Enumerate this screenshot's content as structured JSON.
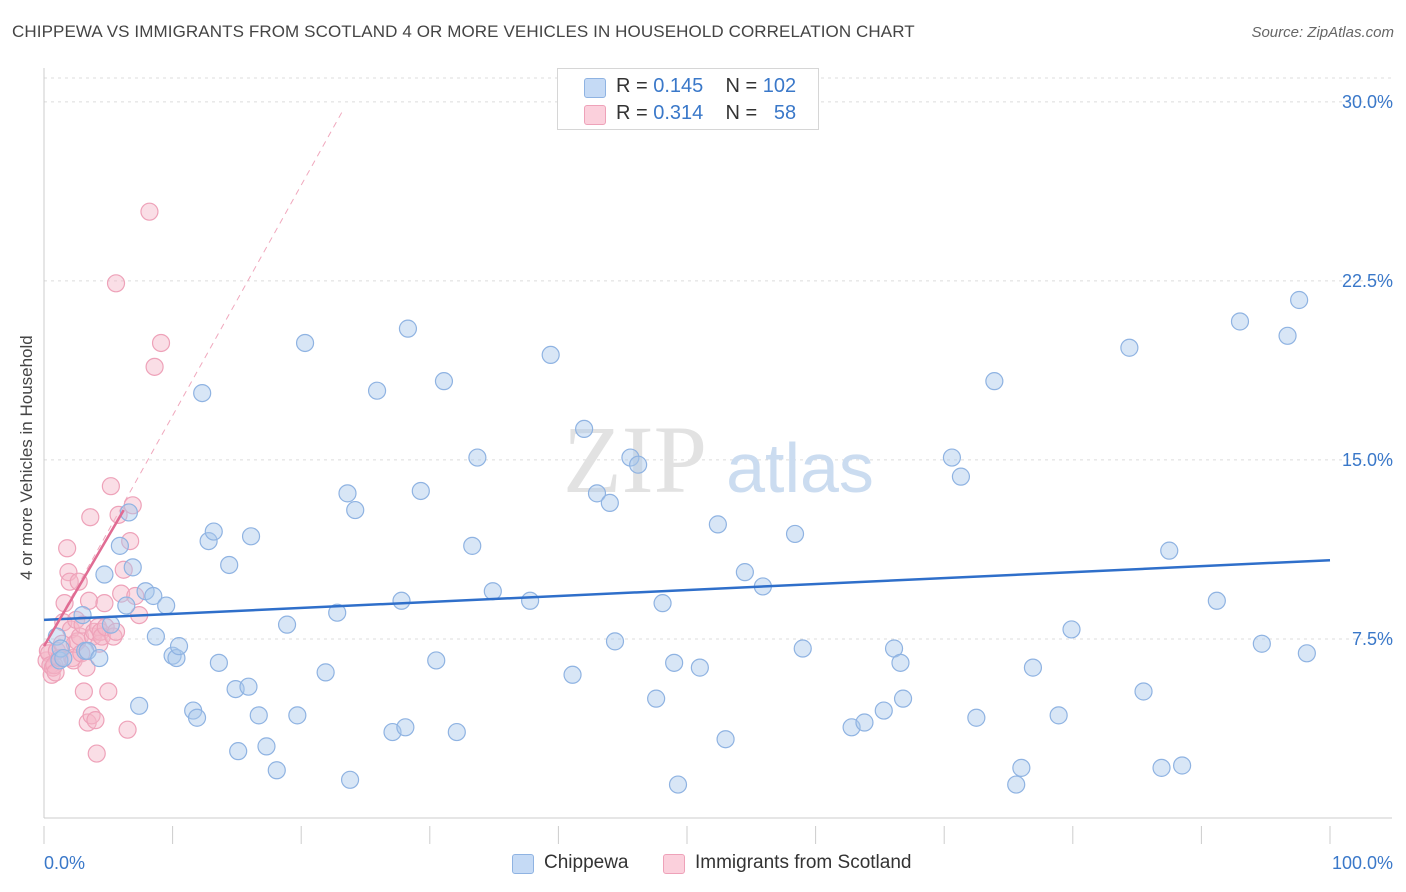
{
  "title": "CHIPPEWA VS IMMIGRANTS FROM SCOTLAND 4 OR MORE VEHICLES IN HOUSEHOLD CORRELATION CHART",
  "source": "Source: ZipAtlas.com",
  "watermark": {
    "zip": "ZIP",
    "atlas": "atlas"
  },
  "colors": {
    "chippewa": "#a9c7ec",
    "chippewa_line": "#2f6fca",
    "scotland": "#f5b6c8",
    "scotland_line": "#e06c93",
    "axis_value": "#3a78c9"
  },
  "legend": {
    "rows": [
      {
        "r_label": "R =",
        "r_value": "0.145",
        "n_label": "N =",
        "n_value": "102"
      },
      {
        "r_label": "R =",
        "r_value": "0.314",
        "n_label": "N =",
        "n_value": "58"
      }
    ]
  },
  "bottom_legend": {
    "series1": "Chippewa",
    "series2": "Immigrants from Scotland"
  },
  "chart_data": {
    "type": "scatter",
    "title": "CHIPPEWA VS IMMIGRANTS FROM SCOTLAND 4 OR MORE VEHICLES IN HOUSEHOLD CORRELATION CHART",
    "xlabel": "",
    "ylabel": "4 or more Vehicles in Household",
    "xlim": [
      0,
      100
    ],
    "ylim": [
      0,
      31
    ],
    "x_ticks": [
      "0.0%",
      "100.0%"
    ],
    "y_ticks": [
      {
        "value": 7.5,
        "label": "7.5%"
      },
      {
        "value": 15.0,
        "label": "15.0%"
      },
      {
        "value": 22.5,
        "label": "22.5%"
      },
      {
        "value": 30.0,
        "label": "30.0%"
      }
    ],
    "grid": true,
    "legend_position": "top-center",
    "series": [
      {
        "name": "Chippewa",
        "color": "#a9c7ec",
        "trend": {
          "x": [
            0,
            100
          ],
          "y": [
            8.3,
            10.8
          ]
        },
        "points": [
          [
            1.0,
            7.6
          ],
          [
            1.2,
            6.6
          ],
          [
            1.3,
            7.1
          ],
          [
            1.5,
            6.7
          ],
          [
            3.0,
            8.5
          ],
          [
            3.2,
            7.0
          ],
          [
            3.4,
            7.0
          ],
          [
            4.3,
            6.7
          ],
          [
            4.7,
            10.2
          ],
          [
            5.2,
            8.1
          ],
          [
            5.9,
            11.4
          ],
          [
            6.4,
            8.9
          ],
          [
            6.6,
            12.8
          ],
          [
            6.9,
            10.5
          ],
          [
            7.4,
            4.7
          ],
          [
            7.9,
            9.5
          ],
          [
            8.5,
            9.3
          ],
          [
            8.7,
            7.6
          ],
          [
            9.5,
            8.9
          ],
          [
            10.0,
            6.8
          ],
          [
            10.3,
            6.7
          ],
          [
            10.5,
            7.2
          ],
          [
            11.6,
            4.5
          ],
          [
            11.9,
            4.2
          ],
          [
            12.3,
            17.8
          ],
          [
            12.8,
            11.6
          ],
          [
            13.2,
            12.0
          ],
          [
            13.6,
            6.5
          ],
          [
            14.4,
            10.6
          ],
          [
            14.9,
            5.4
          ],
          [
            15.1,
            2.8
          ],
          [
            15.9,
            5.5
          ],
          [
            16.1,
            11.8
          ],
          [
            16.7,
            4.3
          ],
          [
            17.3,
            3.0
          ],
          [
            18.1,
            2.0
          ],
          [
            18.9,
            8.1
          ],
          [
            19.7,
            4.3
          ],
          [
            20.3,
            19.9
          ],
          [
            21.9,
            6.1
          ],
          [
            22.8,
            8.6
          ],
          [
            23.6,
            13.6
          ],
          [
            23.8,
            1.6
          ],
          [
            24.2,
            12.9
          ],
          [
            25.9,
            17.9
          ],
          [
            27.1,
            3.6
          ],
          [
            27.8,
            9.1
          ],
          [
            28.1,
            3.8
          ],
          [
            28.3,
            20.5
          ],
          [
            29.3,
            13.7
          ],
          [
            30.5,
            6.6
          ],
          [
            31.1,
            18.3
          ],
          [
            32.1,
            3.6
          ],
          [
            33.3,
            11.4
          ],
          [
            33.7,
            15.1
          ],
          [
            34.9,
            9.5
          ],
          [
            37.8,
            9.1
          ],
          [
            39.4,
            19.4
          ],
          [
            41.1,
            6.0
          ],
          [
            42.0,
            16.3
          ],
          [
            43.0,
            13.6
          ],
          [
            44.0,
            13.2
          ],
          [
            44.4,
            7.4
          ],
          [
            45.6,
            15.1
          ],
          [
            46.2,
            14.8
          ],
          [
            47.6,
            5.0
          ],
          [
            48.1,
            9.0
          ],
          [
            49.0,
            6.5
          ],
          [
            49.3,
            1.4
          ],
          [
            51.0,
            6.3
          ],
          [
            52.4,
            12.3
          ],
          [
            53.0,
            3.3
          ],
          [
            54.5,
            10.3
          ],
          [
            55.9,
            9.7
          ],
          [
            58.4,
            11.9
          ],
          [
            59.0,
            7.1
          ],
          [
            62.8,
            3.8
          ],
          [
            63.8,
            4.0
          ],
          [
            65.3,
            4.5
          ],
          [
            66.1,
            7.1
          ],
          [
            66.6,
            6.5
          ],
          [
            66.8,
            5.0
          ],
          [
            70.6,
            15.1
          ],
          [
            71.3,
            14.3
          ],
          [
            72.5,
            4.2
          ],
          [
            73.9,
            18.3
          ],
          [
            75.6,
            1.4
          ],
          [
            76.0,
            2.1
          ],
          [
            76.9,
            6.3
          ],
          [
            78.9,
            4.3
          ],
          [
            79.9,
            7.9
          ],
          [
            84.4,
            19.7
          ],
          [
            85.5,
            5.3
          ],
          [
            86.9,
            2.1
          ],
          [
            87.5,
            11.2
          ],
          [
            88.5,
            2.2
          ],
          [
            91.2,
            9.1
          ],
          [
            93.0,
            20.8
          ],
          [
            94.7,
            7.3
          ],
          [
            96.7,
            20.2
          ],
          [
            97.6,
            21.7
          ],
          [
            98.2,
            6.9
          ]
        ]
      },
      {
        "name": "Immigrants from Scotland",
        "color": "#f5b6c8",
        "trend": {
          "x": [
            0,
            6.2
          ],
          "y": [
            7.2,
            12.9
          ]
        },
        "points": [
          [
            0.2,
            6.6
          ],
          [
            0.3,
            7.0
          ],
          [
            0.4,
            6.9
          ],
          [
            0.5,
            6.4
          ],
          [
            0.6,
            6.0
          ],
          [
            0.7,
            6.3
          ],
          [
            0.8,
            6.4
          ],
          [
            0.9,
            6.1
          ],
          [
            1.0,
            7.0
          ],
          [
            1.2,
            6.7
          ],
          [
            1.4,
            7.3
          ],
          [
            1.5,
            8.2
          ],
          [
            1.6,
            9.0
          ],
          [
            1.8,
            11.3
          ],
          [
            1.9,
            10.3
          ],
          [
            2.0,
            9.9
          ],
          [
            2.1,
            7.9
          ],
          [
            2.2,
            6.7
          ],
          [
            2.3,
            6.6
          ],
          [
            2.4,
            7.3
          ],
          [
            2.5,
            8.3
          ],
          [
            2.6,
            7.4
          ],
          [
            2.7,
            9.9
          ],
          [
            2.8,
            7.6
          ],
          [
            2.9,
            6.9
          ],
          [
            3.0,
            8.1
          ],
          [
            3.1,
            5.3
          ],
          [
            3.3,
            6.3
          ],
          [
            3.4,
            4.0
          ],
          [
            3.5,
            9.1
          ],
          [
            3.6,
            12.6
          ],
          [
            3.7,
            4.3
          ],
          [
            3.8,
            7.6
          ],
          [
            3.9,
            7.8
          ],
          [
            4.0,
            4.1
          ],
          [
            4.1,
            2.7
          ],
          [
            4.2,
            8.0
          ],
          [
            4.3,
            7.3
          ],
          [
            4.4,
            7.8
          ],
          [
            4.5,
            7.6
          ],
          [
            4.7,
            9.0
          ],
          [
            4.8,
            8.0
          ],
          [
            5.0,
            5.3
          ],
          [
            5.2,
            13.9
          ],
          [
            5.4,
            7.6
          ],
          [
            5.6,
            7.8
          ],
          [
            5.8,
            12.7
          ],
          [
            6.0,
            9.4
          ],
          [
            6.2,
            10.4
          ],
          [
            6.5,
            3.7
          ],
          [
            6.7,
            11.6
          ],
          [
            6.9,
            13.1
          ],
          [
            7.1,
            9.3
          ],
          [
            7.4,
            8.5
          ],
          [
            8.2,
            25.4
          ],
          [
            8.6,
            18.9
          ],
          [
            9.1,
            19.9
          ],
          [
            5.6,
            22.4
          ]
        ]
      }
    ],
    "reference_line": {
      "style": "dashed",
      "color": "#f0a8bd",
      "x": [
        0,
        23.2
      ],
      "y": [
        7.2,
        29.6
      ]
    }
  }
}
